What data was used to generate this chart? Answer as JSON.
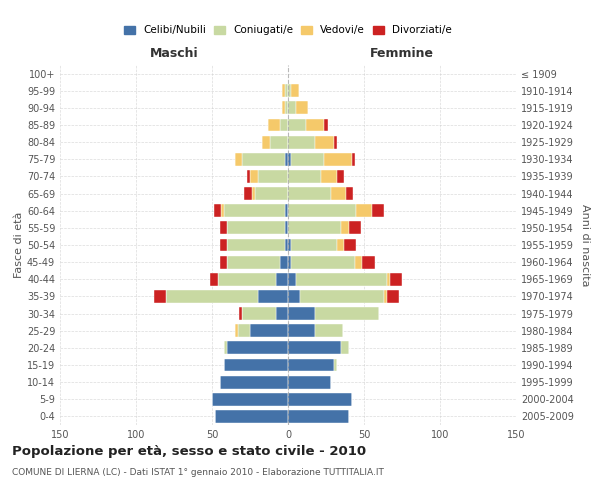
{
  "age_groups": [
    "0-4",
    "5-9",
    "10-14",
    "15-19",
    "20-24",
    "25-29",
    "30-34",
    "35-39",
    "40-44",
    "45-49",
    "50-54",
    "55-59",
    "60-64",
    "65-69",
    "70-74",
    "75-79",
    "80-84",
    "85-89",
    "90-94",
    "95-99",
    "100+"
  ],
  "birth_years": [
    "2005-2009",
    "2000-2004",
    "1995-1999",
    "1990-1994",
    "1985-1989",
    "1980-1984",
    "1975-1979",
    "1970-1974",
    "1965-1969",
    "1960-1964",
    "1955-1959",
    "1950-1954",
    "1945-1949",
    "1940-1944",
    "1935-1939",
    "1930-1934",
    "1925-1929",
    "1920-1924",
    "1915-1919",
    "1910-1914",
    "≤ 1909"
  ],
  "maschi": {
    "celibi": [
      48,
      50,
      45,
      42,
      40,
      25,
      8,
      20,
      8,
      5,
      2,
      2,
      2,
      0,
      0,
      2,
      0,
      0,
      0,
      0,
      0
    ],
    "coniugati": [
      0,
      0,
      0,
      0,
      2,
      8,
      22,
      60,
      38,
      35,
      38,
      38,
      40,
      22,
      20,
      28,
      12,
      5,
      2,
      2,
      0
    ],
    "vedovi": [
      0,
      0,
      0,
      0,
      0,
      2,
      0,
      0,
      0,
      0,
      0,
      0,
      2,
      2,
      5,
      5,
      5,
      8,
      2,
      2,
      0
    ],
    "divorziati": [
      0,
      0,
      0,
      0,
      0,
      0,
      2,
      8,
      5,
      5,
      5,
      5,
      5,
      5,
      2,
      0,
      0,
      0,
      0,
      0,
      0
    ]
  },
  "femmine": {
    "nubili": [
      40,
      42,
      28,
      30,
      35,
      18,
      18,
      8,
      5,
      2,
      2,
      0,
      0,
      0,
      0,
      2,
      0,
      0,
      0,
      0,
      0
    ],
    "coniugate": [
      0,
      0,
      0,
      2,
      5,
      18,
      42,
      55,
      60,
      42,
      30,
      35,
      45,
      28,
      22,
      22,
      18,
      12,
      5,
      2,
      0
    ],
    "vedove": [
      0,
      0,
      0,
      0,
      0,
      0,
      0,
      2,
      2,
      5,
      5,
      5,
      10,
      10,
      10,
      18,
      12,
      12,
      8,
      5,
      0
    ],
    "divorziate": [
      0,
      0,
      0,
      0,
      0,
      0,
      0,
      8,
      8,
      8,
      8,
      8,
      8,
      5,
      5,
      2,
      2,
      2,
      0,
      0,
      0
    ]
  },
  "colors": {
    "celibi_nubili": "#4472a8",
    "coniugati": "#c8d9a2",
    "vedovi": "#f5c96a",
    "divorziati": "#cc2222"
  },
  "xlim": 150,
  "title": "Popolazione per età, sesso e stato civile - 2010",
  "subtitle": "COMUNE DI LIERNA (LC) - Dati ISTAT 1° gennaio 2010 - Elaborazione TUTTITALIA.IT",
  "ylabel_left": "Fasce di età",
  "ylabel_right": "Anni di nascita",
  "xlabel_maschi": "Maschi",
  "xlabel_femmine": "Femmine",
  "legend_labels": [
    "Celibi/Nubili",
    "Coniugati/e",
    "Vedovi/e",
    "Divorziati/e"
  ],
  "background_color": "#ffffff",
  "grid_color": "#cccccc"
}
